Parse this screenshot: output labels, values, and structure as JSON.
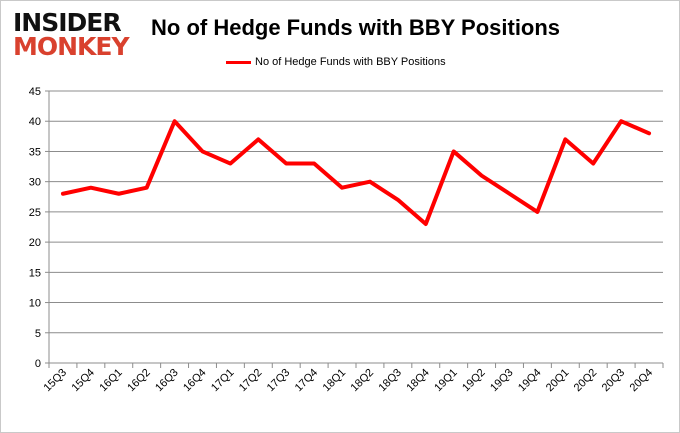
{
  "logo": {
    "line1": "INSIDER",
    "line2": "MONKEY"
  },
  "chart_data": {
    "type": "line",
    "title": "No of Hedge Funds with BBY Positions",
    "xlabel": "",
    "ylabel": "",
    "categories": [
      "15Q3",
      "15Q4",
      "16Q1",
      "16Q2",
      "16Q3",
      "16Q4",
      "17Q1",
      "17Q2",
      "17Q3",
      "17Q4",
      "18Q1",
      "18Q2",
      "18Q3",
      "18Q4",
      "19Q1",
      "19Q2",
      "19Q3",
      "19Q4",
      "20Q1",
      "20Q2",
      "20Q3",
      "20Q4"
    ],
    "series": [
      {
        "name": "No of Hedge Funds with BBY Positions",
        "color": "#ff0000",
        "values": [
          28,
          29,
          28,
          29,
          40,
          35,
          33,
          37,
          33,
          33,
          29,
          30,
          27,
          23,
          35,
          31,
          28,
          25,
          37,
          33,
          40,
          38
        ]
      }
    ],
    "ylim": [
      0,
      45
    ],
    "yticks": [
      0,
      5,
      10,
      15,
      20,
      25,
      30,
      35,
      40,
      45
    ],
    "grid": true,
    "legend": "top-center"
  }
}
